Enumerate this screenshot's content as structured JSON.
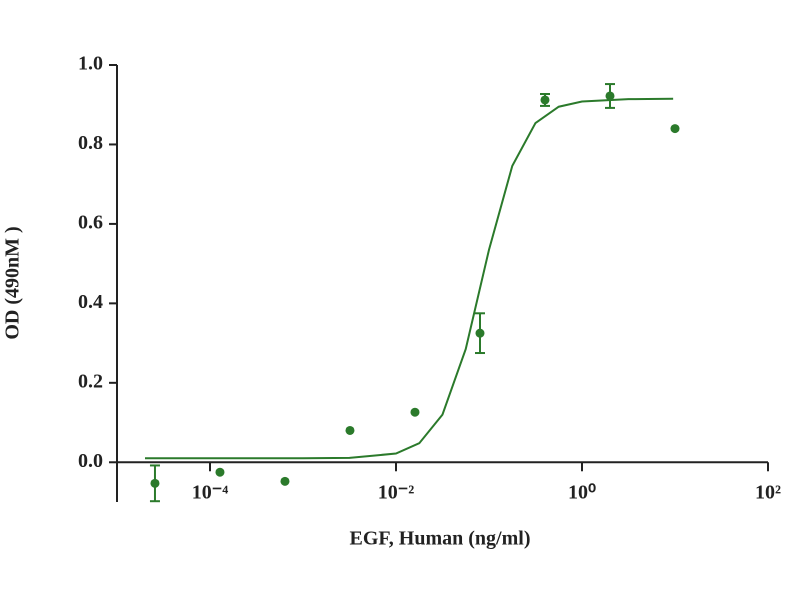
{
  "chart_data": {
    "type": "scatter",
    "x_label": "EGF, Human (ng/ml)",
    "y_label": "OD (490nM )",
    "xscale": "log",
    "xlim": [
      1e-05,
      100
    ],
    "xticks": [
      {
        "value": 0.0001,
        "label": "10⁻⁴"
      },
      {
        "value": 0.01,
        "label": "10⁻²"
      },
      {
        "value": 1,
        "label": "10⁰"
      },
      {
        "value": 100,
        "label": "10²"
      }
    ],
    "ylim": [
      -0.1,
      1.0
    ],
    "yticks": [
      {
        "value": 0,
        "label": "0.0"
      },
      0.2,
      0.4,
      0.6,
      0.8,
      {
        "value": 1,
        "label": "1.0"
      }
    ],
    "color": "#2b7a2b",
    "x": [
      2.56e-05,
      0.000128,
      0.00064,
      0.0032,
      0.016,
      0.08,
      0.4,
      2,
      10
    ],
    "values": [
      -0.053,
      -0.025,
      -0.048,
      0.08,
      0.126,
      0.325,
      0.912,
      0.922,
      0.84
    ],
    "errors": [
      0.045,
      null,
      null,
      null,
      null,
      0.05,
      0.015,
      0.03,
      null
    ],
    "fit": {
      "x": [
        2e-05,
        0.001,
        0.00316,
        0.01,
        0.0178,
        0.0316,
        0.0562,
        0.1,
        0.178,
        0.316,
        0.562,
        1,
        3.16,
        9.55
      ],
      "values": [
        0.01,
        0.01,
        0.011,
        0.022,
        0.048,
        0.12,
        0.285,
        0.535,
        0.746,
        0.854,
        0.895,
        0.908,
        0.914,
        0.915
      ]
    }
  }
}
